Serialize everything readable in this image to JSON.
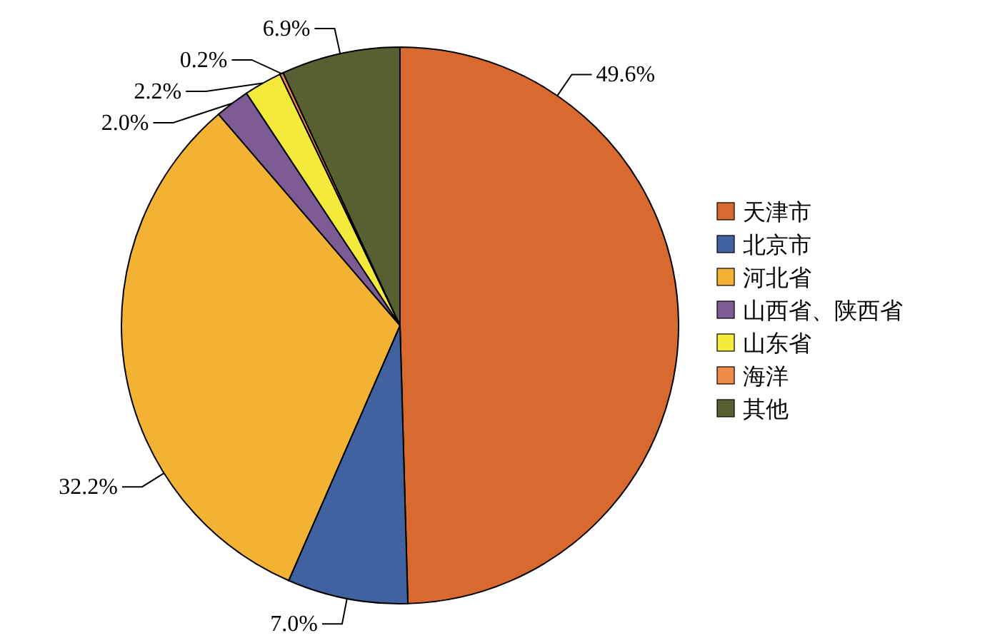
{
  "chart_data": {
    "type": "pie",
    "categories": [
      "天津市",
      "北京市",
      "河北省",
      "山西省、陕西省",
      "山东省",
      "海洋",
      "其他"
    ],
    "values": [
      49.6,
      7.0,
      32.2,
      2.0,
      2.2,
      0.2,
      6.9
    ],
    "colors": [
      "#d96a2f",
      "#4062a0",
      "#f2b233",
      "#7d5b95",
      "#f3ea3c",
      "#f08a4b",
      "#566031"
    ],
    "value_labels": [
      "49.6%",
      "7.0%",
      "32.2%",
      "2.0%",
      "2.2%",
      "0.2%",
      "6.9%"
    ],
    "legend": "right"
  }
}
